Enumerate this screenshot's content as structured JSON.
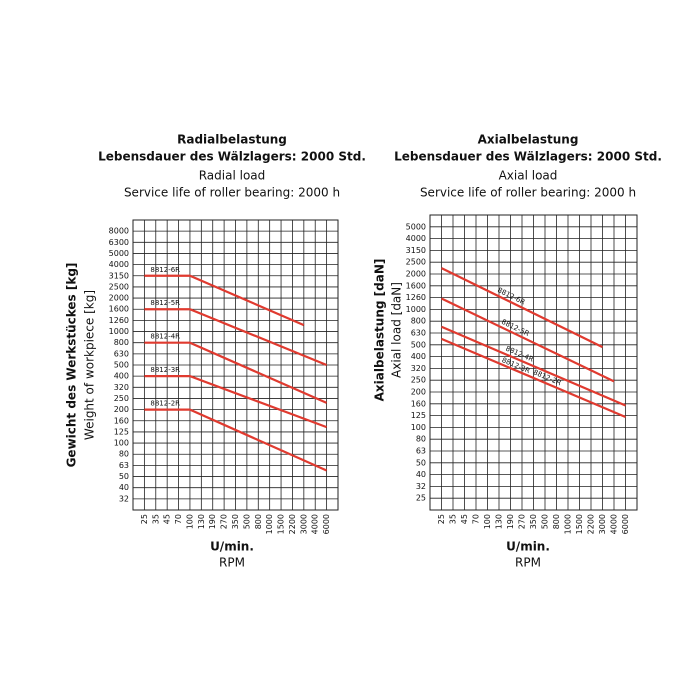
{
  "chart_data": [
    {
      "type": "line",
      "title": "Radialbelastung",
      "subtitle": "Lebensdauer des Wälzlagers: 2000 Std.",
      "title_en": "Radial load",
      "subtitle_en": "Service life of roller bearing: 2000 h",
      "y_label": "Gewicht des Werkstückes [kg]",
      "y_label_en": "Weight of workpiece [kg]",
      "x_label": "U/min.",
      "x_label_en": "RPM",
      "grid": true,
      "color": "#e03a2f",
      "xticks": [
        25,
        35,
        45,
        70,
        100,
        130,
        190,
        270,
        350,
        500,
        800,
        1000,
        1500,
        2200,
        3000,
        4000,
        6000
      ],
      "yticks": [
        8000,
        6300,
        5000,
        4000,
        3150,
        2500,
        2000,
        1600,
        1260,
        1000,
        800,
        630,
        500,
        400,
        320,
        250,
        200,
        160,
        125,
        100,
        80,
        63,
        50,
        40,
        32
      ],
      "series": [
        {
          "name": "8812-6R",
          "x": [
            25,
            100,
            3000
          ],
          "values": [
            3150,
            3150,
            1150
          ]
        },
        {
          "name": "8812-5R",
          "x": [
            25,
            100,
            6000
          ],
          "values": [
            1600,
            1600,
            500
          ]
        },
        {
          "name": "8812-4R",
          "x": [
            25,
            100,
            6000
          ],
          "values": [
            800,
            800,
            230
          ]
        },
        {
          "name": "8812-3R",
          "x": [
            25,
            100,
            6000
          ],
          "values": [
            400,
            400,
            140
          ]
        },
        {
          "name": "8812-2R",
          "x": [
            25,
            100,
            6000
          ],
          "values": [
            200,
            200,
            57
          ]
        }
      ]
    },
    {
      "type": "line",
      "title": "Axialbelastung",
      "subtitle": "Lebensdauer des Wälzlagers: 2000 Std.",
      "title_en": "Axial load",
      "subtitle_en": "Service life of roller bearing: 2000 h",
      "y_label": "Axialbelastung [daN]",
      "y_label_en": "Axial load [daN]",
      "x_label": "U/min.",
      "x_label_en": "RPM",
      "grid": true,
      "color": "#e03a2f",
      "xticks": [
        25,
        35,
        45,
        70,
        100,
        130,
        190,
        270,
        350,
        500,
        800,
        1000,
        1500,
        2200,
        3000,
        4000,
        6000
      ],
      "yticks": [
        5000,
        4000,
        3150,
        2500,
        2000,
        1600,
        1260,
        1000,
        800,
        630,
        500,
        400,
        320,
        250,
        200,
        160,
        125,
        100,
        80,
        63,
        50,
        40,
        32,
        25
      ],
      "series": [
        {
          "name": "8812-6R",
          "x": [
            25,
            3000
          ],
          "values": [
            2250,
            480
          ]
        },
        {
          "name": "8812-5R",
          "x": [
            25,
            4000
          ],
          "values": [
            1240,
            245
          ]
        },
        {
          "name": "8812-4R",
          "x": [
            25,
            6000
          ],
          "values": [
            720,
            155
          ]
        },
        {
          "name": "8812-2R",
          "x": [
            25,
            6000
          ],
          "values": [
            565,
            122
          ]
        }
      ],
      "annotations": [
        "8812-3R"
      ]
    }
  ]
}
